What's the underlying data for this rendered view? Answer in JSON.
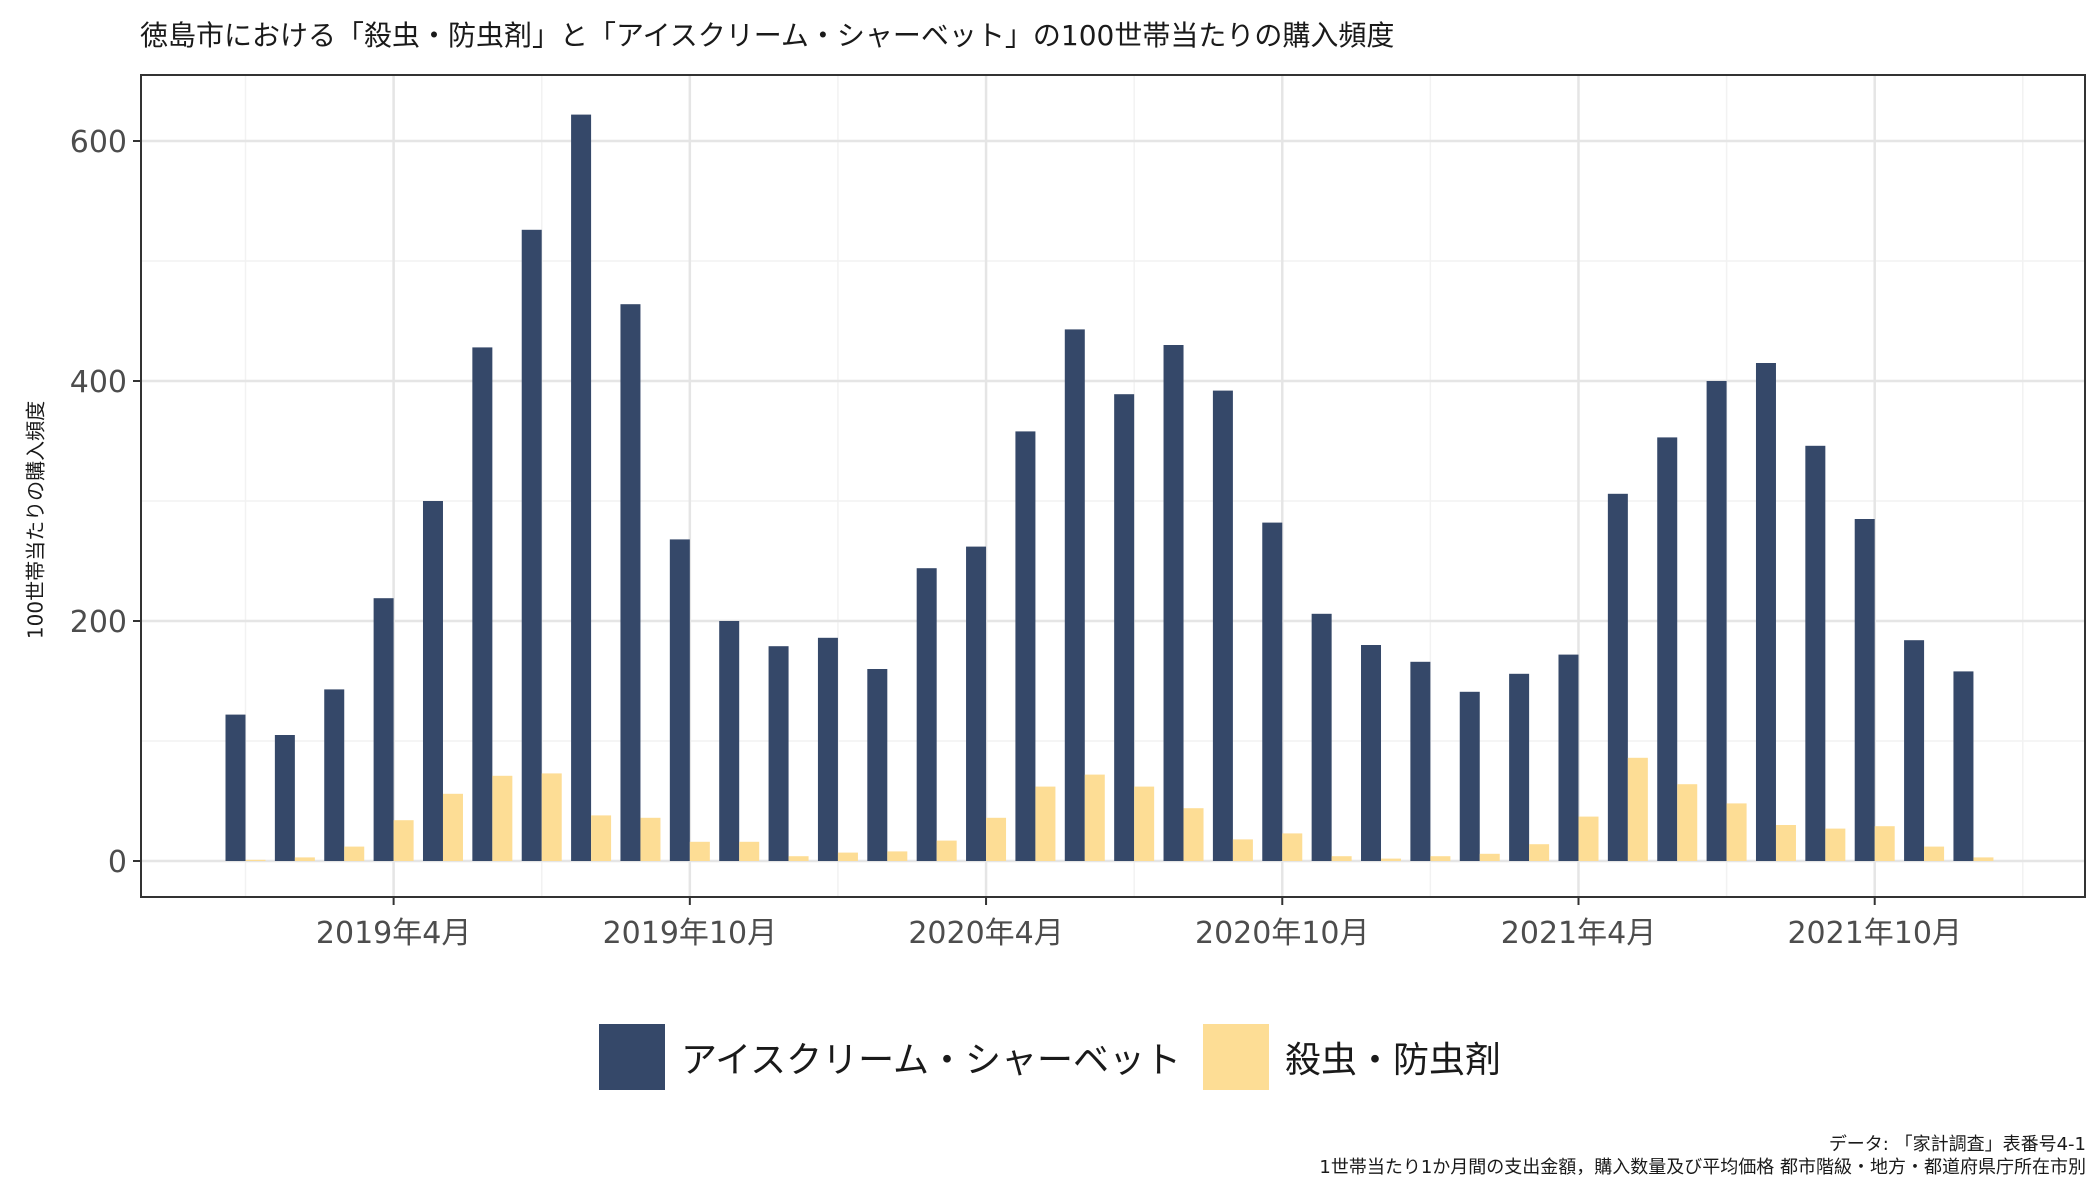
{
  "chart_data": {
    "type": "bar",
    "title": "徳島市における「殺虫・防虫剤」と「アイスクリーム・シャーベット」の100世帯当たりの購入頻度",
    "xlabel": "",
    "ylabel": "100世帯当たりの購入頻度",
    "ylim": [
      -30,
      655
    ],
    "yticks": [
      0,
      200,
      400,
      600
    ],
    "grid": true,
    "legend_position": "bottom",
    "x_tick_labels": [
      {
        "month_index": 3,
        "label": "2019年4月"
      },
      {
        "month_index": 9,
        "label": "2019年10月"
      },
      {
        "month_index": 15,
        "label": "2020年4月"
      },
      {
        "month_index": 21,
        "label": "2020年10月"
      },
      {
        "month_index": 27,
        "label": "2021年4月"
      },
      {
        "month_index": 33,
        "label": "2021年10月"
      }
    ],
    "categories": [
      "2019-01",
      "2019-02",
      "2019-03",
      "2019-04",
      "2019-05",
      "2019-06",
      "2019-07",
      "2019-08",
      "2019-09",
      "2019-10",
      "2019-11",
      "2019-12",
      "2020-01",
      "2020-02",
      "2020-03",
      "2020-04",
      "2020-05",
      "2020-06",
      "2020-07",
      "2020-08",
      "2020-09",
      "2020-10",
      "2020-11",
      "2020-12",
      "2021-01",
      "2021-02",
      "2021-03",
      "2021-04",
      "2021-05",
      "2021-06",
      "2021-07",
      "2021-08",
      "2021-09",
      "2021-10",
      "2021-11",
      "2021-12"
    ],
    "series": [
      {
        "name": "アイスクリーム・シャーベット",
        "color": "#354869",
        "values": [
          122,
          105,
          143,
          219,
          300,
          428,
          526,
          622,
          464,
          268,
          200,
          179,
          186,
          160,
          244,
          262,
          358,
          443,
          389,
          430,
          392,
          282,
          206,
          180,
          166,
          141,
          156,
          172,
          306,
          353,
          400,
          415,
          346,
          285,
          184,
          158
        ]
      },
      {
        "name": "殺虫・防虫剤",
        "color": "#FDDD95",
        "values": [
          1,
          3,
          12,
          34,
          56,
          71,
          73,
          38,
          36,
          16,
          16,
          4,
          7,
          8,
          17,
          36,
          62,
          72,
          62,
          44,
          18,
          23,
          4,
          2,
          4,
          6,
          14,
          37,
          86,
          64,
          48,
          30,
          27,
          29,
          12,
          3
        ]
      }
    ]
  },
  "source": {
    "line1": "データ: 「家計調査」表番号4-1",
    "line2": "1世帯当たり1か月間の支出金額，購入数量及び平均価格 都市階級・地方・都道府県庁所在市別"
  }
}
